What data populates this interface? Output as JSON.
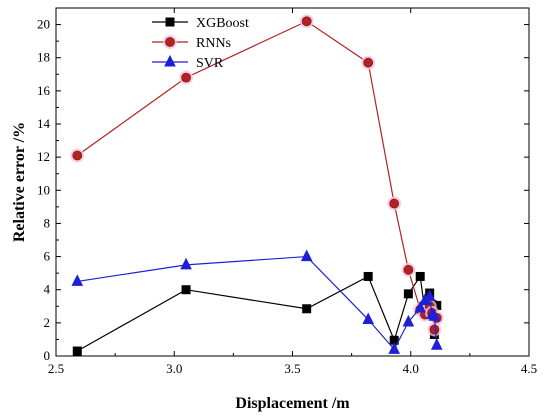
{
  "chart_data": {
    "type": "line",
    "xlabel": "Displacement /m",
    "ylabel": "Relative error /%",
    "xlim": [
      2.5,
      4.5
    ],
    "ylim": [
      0,
      21
    ],
    "x_ticks": [
      "2.5",
      "3.0",
      "3.5",
      "4.0",
      "4.5"
    ],
    "y_ticks": [
      "0",
      "2",
      "4",
      "6",
      "8",
      "10",
      "12",
      "14",
      "16",
      "18",
      "20"
    ],
    "grid": false,
    "legend_position": "top-center",
    "series": [
      {
        "name": "XGBoost",
        "color": "#000000",
        "marker": "square",
        "points": [
          [
            2.59,
            0.3
          ],
          [
            3.05,
            4.0
          ],
          [
            3.56,
            2.85
          ],
          [
            3.82,
            4.8
          ],
          [
            3.93,
            0.95
          ],
          [
            3.99,
            3.75
          ],
          [
            4.04,
            4.8
          ],
          [
            4.06,
            2.7
          ],
          [
            4.08,
            3.8
          ],
          [
            4.09,
            3.1
          ],
          [
            4.1,
            1.3
          ],
          [
            4.11,
            3.05
          ]
        ]
      },
      {
        "name": "RNNs",
        "color": "#b22222",
        "marker": "circle",
        "points": [
          [
            2.59,
            12.1
          ],
          [
            3.05,
            16.8
          ],
          [
            3.56,
            20.2
          ],
          [
            3.82,
            17.7
          ],
          [
            3.93,
            9.2
          ],
          [
            3.99,
            5.2
          ],
          [
            4.04,
            2.8
          ],
          [
            4.06,
            2.5
          ],
          [
            4.08,
            3.0
          ],
          [
            4.09,
            2.6
          ],
          [
            4.1,
            1.6
          ],
          [
            4.11,
            2.3
          ]
        ]
      },
      {
        "name": "SVR",
        "color": "#1f1fd6",
        "marker": "triangle",
        "points": [
          [
            2.59,
            4.5
          ],
          [
            3.05,
            5.5
          ],
          [
            3.56,
            6.0
          ],
          [
            3.82,
            2.2
          ],
          [
            3.93,
            0.4
          ],
          [
            3.99,
            2.05
          ],
          [
            4.04,
            2.9
          ],
          [
            4.06,
            3.35
          ],
          [
            4.08,
            3.6
          ],
          [
            4.09,
            2.5
          ],
          [
            4.1,
            2.4
          ],
          [
            4.11,
            0.65
          ]
        ]
      }
    ]
  }
}
